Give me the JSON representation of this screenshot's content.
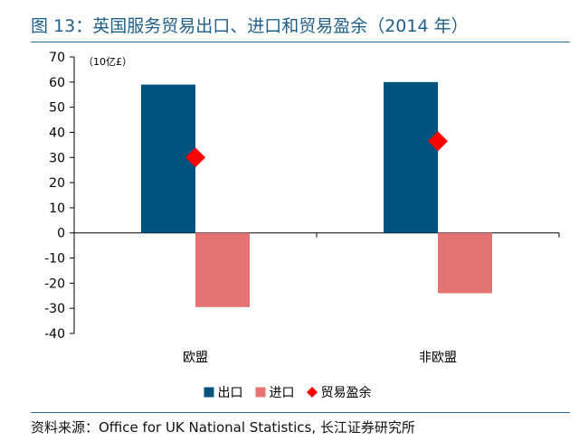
{
  "title": "图 13：英国服务贸易出口、进口和贸易盈余（2014 年）",
  "source": "资料来源：Office for UK National Statistics, 长江证券研究所",
  "chart_data": {
    "type": "bar",
    "unit_label": "（10亿£）",
    "categories": [
      "欧盟",
      "非欧盟"
    ],
    "series": [
      {
        "name": "出口",
        "kind": "bar",
        "color": "#00527f",
        "values": [
          59,
          60
        ]
      },
      {
        "name": "进口",
        "kind": "bar",
        "color": "#e57373",
        "values": [
          -29.5,
          -24
        ]
      },
      {
        "name": "贸易盈余",
        "kind": "marker",
        "color": "#ff0000",
        "values": [
          30,
          36.5
        ]
      }
    ],
    "ylim": [
      -40,
      70
    ],
    "yticks": [
      70,
      60,
      50,
      40,
      30,
      20,
      10,
      0,
      -10,
      -20,
      -30,
      -40
    ],
    "grid": false,
    "legend_position": "bottom"
  }
}
